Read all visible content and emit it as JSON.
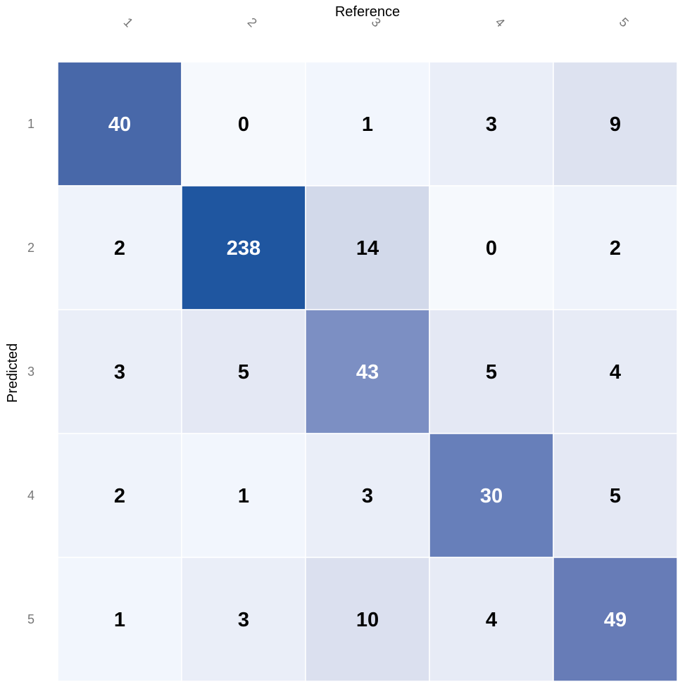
{
  "chart_data": {
    "type": "heatmap",
    "xlabel": "Reference",
    "ylabel": "Predicted",
    "x_categories": [
      "1",
      "2",
      "3",
      "4",
      "5"
    ],
    "y_categories": [
      "1",
      "2",
      "3",
      "4",
      "5"
    ],
    "values": [
      [
        40,
        0,
        1,
        3,
        9
      ],
      [
        2,
        238,
        14,
        0,
        2
      ],
      [
        3,
        5,
        43,
        5,
        4
      ],
      [
        2,
        1,
        3,
        30,
        5
      ],
      [
        1,
        3,
        10,
        4,
        49
      ]
    ],
    "legend": "none",
    "colors": {
      "cell_palette": {
        "40": "#4868a9",
        "0": "#f6f9fd",
        "1": "#f2f6fd",
        "3": "#eaeef8",
        "9": "#dde2f0",
        "2": "#eff3fb",
        "238": "#1f56a0",
        "14": "#d2d9ea",
        "5": "#e4e8f4",
        "43": "#7c8fc3",
        "4": "#e7ebf6",
        "30": "#677fba",
        "10": "#dbe0ef",
        "49": "#677cb7"
      },
      "light_text": "#ffffff",
      "dark_text": "#000000",
      "gridline": "#ffffff"
    }
  }
}
